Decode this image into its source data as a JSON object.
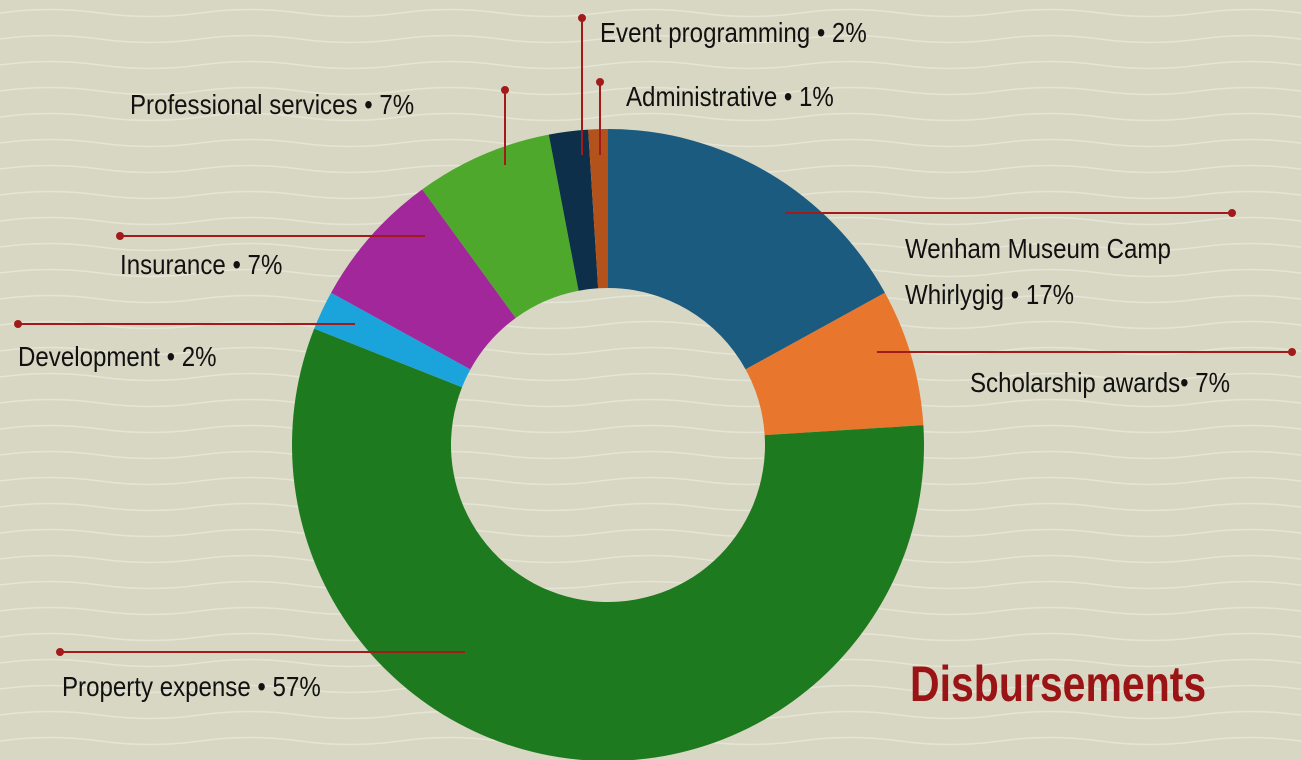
{
  "chart_data": {
    "type": "donut",
    "title": "Disbursements",
    "categories": [
      "Wenham Museum Camp Whirlygig",
      "Scholarship awards",
      "Property expense",
      "Development",
      "Insurance",
      "Professional services",
      "Event programming",
      "Administrative"
    ],
    "values": [
      17,
      7,
      57,
      2,
      7,
      7,
      2,
      1
    ],
    "value_labels": [
      "Wenham Museum Camp Whirlygig • 17%",
      "Scholarship awards• 7%",
      "Property expense • 57%",
      "Development  • 2%",
      "Insurance  • 7%",
      "Professional services • 7%",
      "Event programming • 2%",
      "Administrative • 1%"
    ],
    "colors": [
      "#1b5b80",
      "#e8762c",
      "#1e7a1f",
      "#1ba3dc",
      "#a1279b",
      "#4ea82c",
      "#0e2f4a",
      "#b4521c"
    ]
  }
}
